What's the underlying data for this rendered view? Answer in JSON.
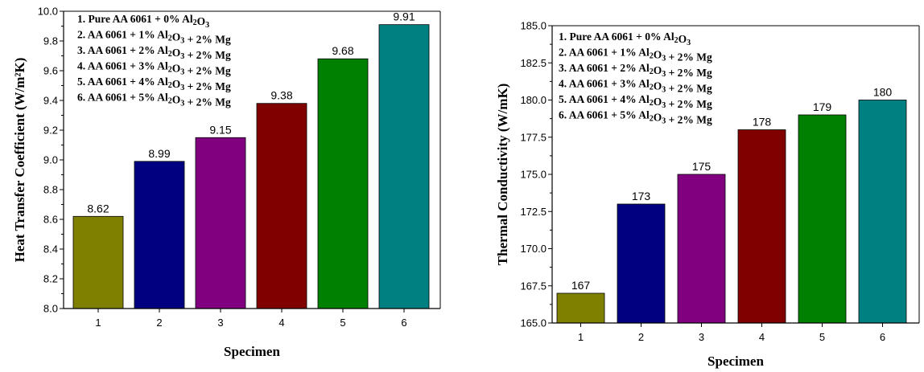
{
  "chart_data": [
    {
      "type": "bar",
      "categories": [
        "1",
        "2",
        "3",
        "4",
        "5",
        "6"
      ],
      "values": [
        8.62,
        8.99,
        9.15,
        9.38,
        9.68,
        9.91
      ],
      "value_labels": [
        "8.62",
        "8.99",
        "9.15",
        "9.38",
        "9.68",
        "9.91"
      ],
      "colors": [
        "#808000",
        "#000080",
        "#800080",
        "#800000",
        "#008000",
        "#008080"
      ],
      "xlabel": "Specimen",
      "ylabel": "Heat Transfer Coefficient (W/m²K)",
      "ylim": [
        8.0,
        10.0
      ],
      "yticks": [
        "8.0",
        "8.2",
        "8.4",
        "8.6",
        "8.8",
        "9.0",
        "9.2",
        "9.4",
        "9.6",
        "9.8",
        "10.0"
      ],
      "legend_position": "top-left",
      "legend": [
        "1. Pure AA 6061 + 0% Al₂O₃",
        "2. AA 6061 + 1% Al₂O₃ + 2% Mg",
        "3. AA 6061 + 2% Al₂O₃ + 2% Mg",
        "4. AA 6061 + 3% Al₂O₃ + 2% Mg",
        "5. AA 6061 + 4% Al₂O₃ + 2% Mg",
        "6. AA 6061 + 5% Al₂O₃ + 2% Mg"
      ],
      "grid": false
    },
    {
      "type": "bar",
      "categories": [
        "1",
        "2",
        "3",
        "4",
        "5",
        "6"
      ],
      "values": [
        167,
        173,
        175,
        178,
        179,
        180
      ],
      "value_labels": [
        "167",
        "173",
        "175",
        "178",
        "179",
        "180"
      ],
      "colors": [
        "#808000",
        "#000080",
        "#800080",
        "#800000",
        "#008000",
        "#008080"
      ],
      "xlabel": "Specimen",
      "ylabel": "Thermal Conductivity (W/mK)",
      "ylim": [
        165.0,
        185.0
      ],
      "yticks": [
        "165.0",
        "167.5",
        "170.0",
        "172.5",
        "175.0",
        "177.5",
        "180.0",
        "182.5",
        "185.0"
      ],
      "legend_position": "top-left",
      "legend": [
        "1. Pure AA 6061 + 0% Al₂O₃",
        "2. AA 6061 + 1% Al₂O₃ + 2% Mg",
        "3. AA 6061 + 2% Al₂O₃ + 2% Mg",
        "4. AA 6061 + 3% Al₂O₃ + 2% Mg",
        "5. AA 6061 + 4% Al₂O₃ + 2% Mg",
        "6. AA 6061 + 5% Al₂O₃ + 2% Mg"
      ],
      "grid": false
    }
  ]
}
